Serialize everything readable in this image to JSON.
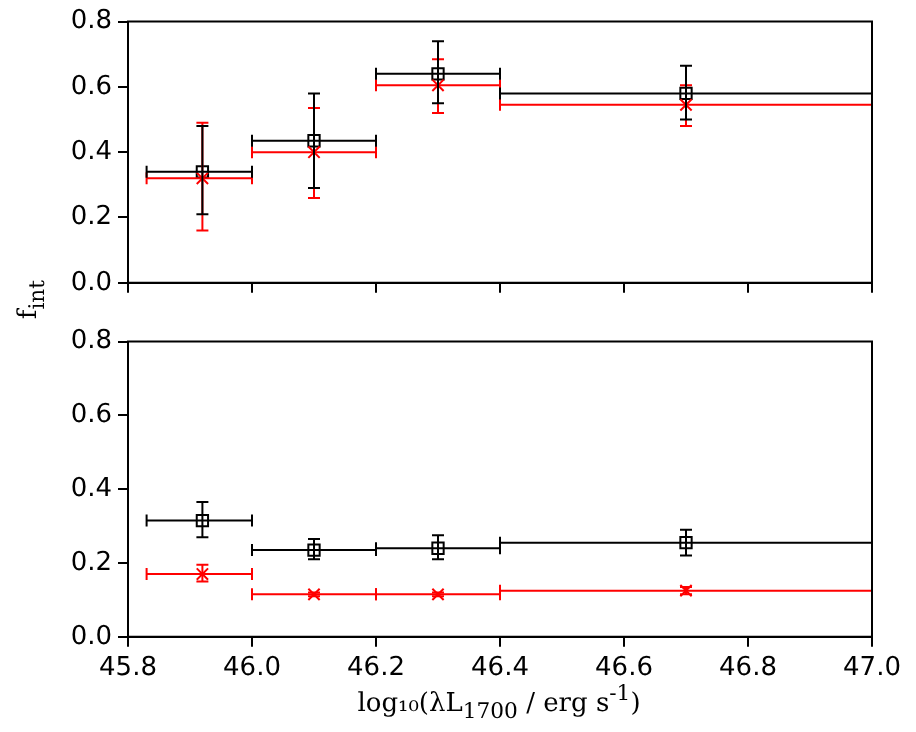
{
  "chart_data": [
    {
      "type": "scatter",
      "ylabel": "f$_{int}$",
      "x": [
        45.92,
        46.1,
        46.3,
        46.7
      ],
      "xlim": [
        45.8,
        47.0
      ],
      "xticks": [
        45.8,
        46.0,
        46.2,
        46.4,
        46.6,
        46.8,
        47.0
      ],
      "ylim": [
        0.0,
        0.8
      ],
      "yticks": [
        {
          "value": 0,
          "label": "0.0"
        },
        0.2,
        0.4,
        0.6,
        0.8
      ],
      "tick_labels": "y",
      "grid": false,
      "legend": false,
      "series": [
        {
          "color": "#ff0000",
          "marker": "cross",
          "values": [
            0.32,
            0.4,
            0.605,
            0.545
          ],
          "errors": [
            [
              0.16,
              0.49
            ],
            [
              0.26,
              0.535
            ],
            [
              0.52,
              0.685
            ],
            [
              0.48,
              0.605
            ]
          ],
          "xerrors": [
            [
              45.83,
              46.0
            ],
            [
              46.0,
              46.2
            ],
            [
              46.2,
              46.4
            ],
            [
              46.4,
              47.0
            ]
          ]
        },
        {
          "color": "#000000",
          "marker": "square",
          "values": [
            0.34,
            0.435,
            0.64,
            0.58
          ],
          "errors": [
            [
              0.21,
              0.48
            ],
            [
              0.29,
              0.58
            ],
            [
              0.55,
              0.74
            ],
            [
              0.5,
              0.665
            ]
          ],
          "xerrors": [
            [
              45.83,
              46.0
            ],
            [
              46.0,
              46.2
            ],
            [
              46.2,
              46.4
            ],
            [
              46.4,
              47.0
            ]
          ]
        }
      ]
    },
    {
      "type": "scatter",
      "xlabel": "log₁₀(λL$_{1700}$ / erg s$^{-1}$)",
      "x": [
        45.92,
        46.1,
        46.3,
        46.7
      ],
      "xlim": [
        45.8,
        47.0
      ],
      "xticks": [
        45.8,
        {
          "value": 46,
          "label": "46.0"
        },
        46.2,
        46.4,
        46.6,
        46.8,
        {
          "value": 47,
          "label": "47.0"
        }
      ],
      "ylim": [
        0.0,
        0.8
      ],
      "yticks": [
        {
          "value": 0,
          "label": "0.0"
        },
        0.2,
        0.4,
        0.6,
        0.8
      ],
      "grid": false,
      "legend": false,
      "series": [
        {
          "color": "#ff0000",
          "marker": "cross",
          "values": [
            0.17,
            0.115,
            0.115,
            0.125
          ],
          "errors": [
            [
              0.15,
              0.195
            ],
            [
              0.11,
              0.12
            ],
            [
              0.11,
              0.12
            ],
            [
              0.115,
              0.135
            ]
          ],
          "xerrors": [
            [
              45.83,
              46.0
            ],
            [
              46.0,
              46.2
            ],
            [
              46.2,
              46.4
            ],
            [
              46.4,
              47.0
            ]
          ]
        },
        {
          "color": "#000000",
          "marker": "square",
          "values": [
            0.315,
            0.235,
            0.24,
            0.255
          ],
          "errors": [
            [
              0.27,
              0.365
            ],
            [
              0.21,
              0.265
            ],
            [
              0.21,
              0.275
            ],
            [
              0.22,
              0.29
            ]
          ],
          "xerrors": [
            [
              45.83,
              46.0
            ],
            [
              46.0,
              46.2
            ],
            [
              46.2,
              46.4
            ],
            [
              46.4,
              47.0
            ]
          ]
        }
      ]
    }
  ]
}
